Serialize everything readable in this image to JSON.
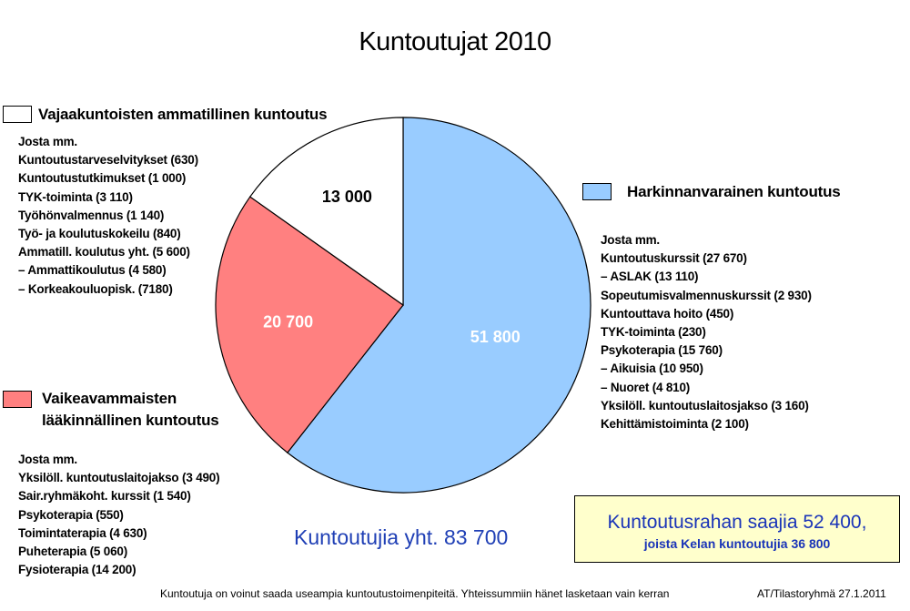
{
  "title": "Kuntoutujat 2010",
  "chart_data": {
    "type": "pie",
    "title": "Kuntoutujat 2010",
    "slices": [
      {
        "label": "Harkinnanvarainen kuntoutus",
        "value": 51800,
        "value_label": "51 800",
        "color": "#99ccff",
        "label_color": "#ffffff"
      },
      {
        "label": "Vaikeavammaisten lääkinnällinen kuntoutus",
        "value": 20700,
        "value_label": "20 700",
        "color": "#ff8080",
        "label_color": "#ffffff"
      },
      {
        "label": "Vajaakuntoisten ammatillinen kuntoutus",
        "value": 13000,
        "value_label": "13 000",
        "color": "#ffffff",
        "label_color": "#000000"
      }
    ]
  },
  "legend": {
    "vaja": {
      "label": "Vajaakuntoisten ammatillinen kuntoutus",
      "color": "#ffffff",
      "details": [
        "Josta mm.",
        "Kuntoutustarveselvitykset (630)",
        "Kuntoutustutkimukset (1 000)",
        "TYK-toiminta (3 110)",
        "Työhönvalmennus (1 140)",
        "Työ- ja koulutuskokeilu (840)",
        "Ammatill. koulutus yht. (5 600)",
        "– Ammattikoulutus (4 580)",
        "– Korkeakouluopisk. (7180)"
      ]
    },
    "hark": {
      "label": "Harkinnanvarainen kuntoutus",
      "color": "#99ccff",
      "details": [
        "Josta mm.",
        "Kuntoutuskurssit (27 670)",
        "– ASLAK (13 110)",
        "Sopeutumisvalmennuskurssit  (2 930)",
        "Kuntouttava hoito (450)",
        "TYK-toiminta (230)",
        "Psykoterapia (15 760)",
        "– Aikuisia (10 950)",
        "– Nuoret (4 810)",
        "Yksilöll. kuntoutuslaitosjakso (3 160)",
        "Kehittämistoiminta (2 100)"
      ]
    },
    "vaik": {
      "label_line1": "Vaikeavammaisten",
      "label_line2": "lääkinnällinen kuntoutus",
      "color": "#ff8080",
      "details": [
        "Josta mm.",
        "Yksilöll. kuntoutuslaitojakso (3 490)",
        "Sair.ryhmäkoht. kurssit  (1 540)",
        "Psykoterapia (550)",
        "Toimintaterapia (4 630)",
        "Puheterapia (5 060)",
        "Fysioterapia (14 200)"
      ]
    }
  },
  "total": "Kuntoutujia yht. 83 700",
  "kuntoutusraha": {
    "line1": "Kuntoutusrahan saajia 52 400,",
    "line2": "joista Kelan kuntoutujia 36 800"
  },
  "footnote": "Kuntoutuja on voinut saada useampia kuntoutustoimenpiteitä. Yhteissummiin hänet lasketaan vain kerran",
  "source": "AT/Tilastoryhmä  27.1.2011"
}
